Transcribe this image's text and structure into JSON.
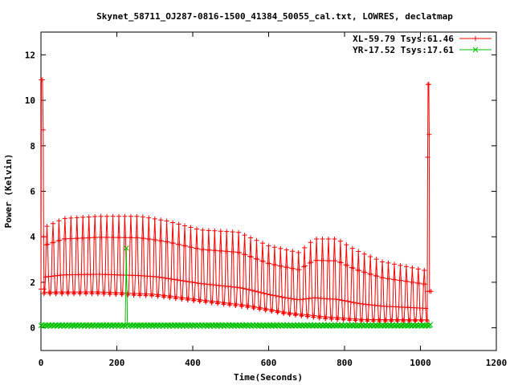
{
  "chart_data": {
    "type": "line",
    "title": "Skynet_58711_OJ287-0816-1500_41384_50055_cal.txt, LOWRES, declatmap",
    "xlabel": "Time(Seconds)",
    "ylabel": "Power (Kelvin)",
    "xlim": [
      0,
      1200
    ],
    "ylim": [
      -1,
      13
    ],
    "xticks": [
      0,
      200,
      400,
      600,
      800,
      1000,
      1200
    ],
    "yticks": [
      0,
      2,
      4,
      6,
      8,
      10,
      12
    ],
    "grid": false,
    "legend_position": "top-right",
    "series": [
      {
        "name": "XL-59.79 Tsys:61.46",
        "color": "#ff0000",
        "marker": "plus",
        "segments": [
          {
            "t0": 0,
            "t1": 8,
            "base": 10.9,
            "peak": 10.9,
            "note": "initial cal spike"
          },
          {
            "t0": 1018,
            "t1": 1024,
            "base": 10.7,
            "peak": 10.7,
            "note": "final cal spike"
          }
        ],
        "scans": {
          "t_start": 8,
          "t_end": 1018,
          "count": 64,
          "peak_envelope": [
            [
              8,
              4.4
            ],
            [
              60,
              4.8
            ],
            [
              150,
              4.9
            ],
            [
              260,
              4.9
            ],
            [
              330,
              4.7
            ],
            [
              420,
              4.3
            ],
            [
              520,
              4.2
            ],
            [
              600,
              3.6
            ],
            [
              680,
              3.3
            ],
            [
              720,
              3.9
            ],
            [
              780,
              3.9
            ],
            [
              830,
              3.4
            ],
            [
              900,
              2.9
            ],
            [
              960,
              2.7
            ],
            [
              1018,
              2.5
            ]
          ],
          "base_envelope": [
            [
              8,
              1.5
            ],
            [
              150,
              1.5
            ],
            [
              300,
              1.4
            ],
            [
              450,
              1.1
            ],
            [
              550,
              0.9
            ],
            [
              650,
              0.6
            ],
            [
              750,
              0.4
            ],
            [
              850,
              0.3
            ],
            [
              1018,
              0.3
            ]
          ]
        }
      },
      {
        "name": "YR-17.52 Tsys:17.61",
        "color": "#00c000",
        "marker": "x",
        "base_value": 0.1,
        "spike": {
          "t": 225,
          "value": 3.5
        }
      }
    ]
  }
}
